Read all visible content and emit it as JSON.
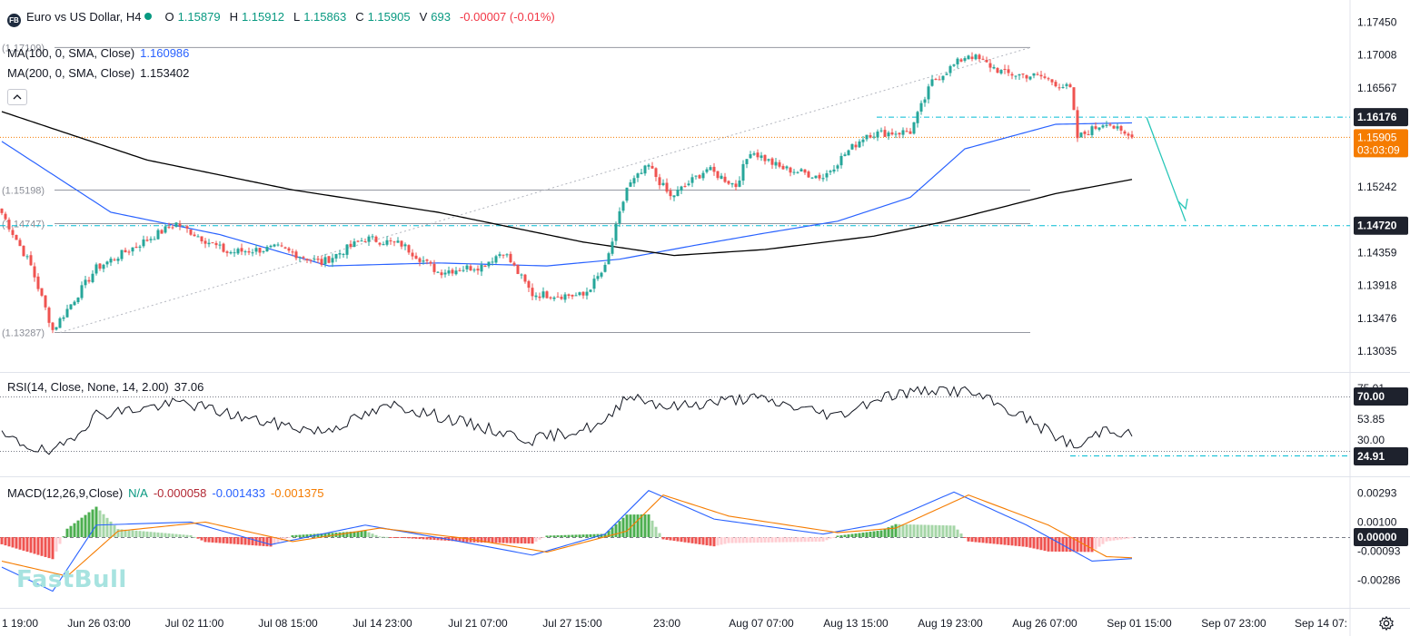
{
  "symbol": {
    "icon_text": "FB",
    "title": "Euro vs US Dollar, H4",
    "o_label": "O",
    "o": "1.15879",
    "h_label": "H",
    "h": "1.15912",
    "l_label": "L",
    "l": "1.15863",
    "c_label": "C",
    "c": "1.15905",
    "v_label": "V",
    "v": "693",
    "change": "-0.00007 (-0.01%)"
  },
  "indicators": {
    "ma100_label": "MA(100, 0, SMA, Close)",
    "ma100_value": "1.160986",
    "ma200_label": "MA(200, 0, SMA, Close)",
    "ma200_value": "1.153402",
    "rsi_label": "RSI(14, Close, None, 14, 2.00)",
    "rsi_value": "37.06",
    "macd_label": "MACD(12,26,9,Close)",
    "macd_na": "N/A",
    "macd_hist": "-0.000058",
    "macd_line": "-0.001433",
    "macd_signal": "-0.001375"
  },
  "watermark": "FastBull",
  "colors": {
    "up": "#26a69a",
    "down": "#ef5350",
    "ma100": "#2962ff",
    "ma200": "#000000",
    "drawing": "#00bcd4",
    "macd_line": "#2962ff",
    "macd_signal": "#f57c00"
  },
  "chart_data": [
    {
      "type": "candlestick",
      "title": "Euro vs US Dollar, H4",
      "ylim": [
        1.128,
        1.1768
      ],
      "y_ticks": [
        "1.17450",
        "1.17008",
        "1.16567",
        "1.15242",
        "1.14359",
        "1.13918",
        "1.13476",
        "1.13035"
      ],
      "x_ticks": [
        "1 19:00",
        "Jun 26 03:00",
        "Jul 02 11:00",
        "Jul 08 15:00",
        "Jul 14 23:00",
        "Jul 21 07:00",
        "Jul 27 15:00",
        "23:00",
        "Aug 07 07:00",
        "Aug 13 15:00",
        "Aug 19 23:00",
        "Aug 26 07:00",
        "Sep 01 15:00",
        "Sep 07 23:00",
        "Sep 14 07:"
      ],
      "price_labels": {
        "resistance": "1.16176",
        "current": "1.15905",
        "countdown": "03:03:09",
        "support": "1.14720"
      },
      "fib_levels": [
        "(1.17109)",
        "(1.15198)",
        "(1.14747)",
        "(1.13287)"
      ],
      "anchors": [
        {
          "x": 0,
          "y": 1.1489
        },
        {
          "x": 8,
          "y": 1.1418
        },
        {
          "x": 14,
          "y": 1.1332
        },
        {
          "x": 26,
          "y": 1.1415
        },
        {
          "x": 48,
          "y": 1.1475
        },
        {
          "x": 62,
          "y": 1.1436
        },
        {
          "x": 76,
          "y": 1.1442
        },
        {
          "x": 88,
          "y": 1.1422
        },
        {
          "x": 100,
          "y": 1.1455
        },
        {
          "x": 110,
          "y": 1.1447
        },
        {
          "x": 120,
          "y": 1.141
        },
        {
          "x": 132,
          "y": 1.1418
        },
        {
          "x": 138,
          "y": 1.1438
        },
        {
          "x": 146,
          "y": 1.138
        },
        {
          "x": 160,
          "y": 1.1378
        },
        {
          "x": 166,
          "y": 1.1415
        },
        {
          "x": 172,
          "y": 1.1523
        },
        {
          "x": 178,
          "y": 1.1552
        },
        {
          "x": 184,
          "y": 1.151
        },
        {
          "x": 194,
          "y": 1.1548
        },
        {
          "x": 202,
          "y": 1.1526
        },
        {
          "x": 206,
          "y": 1.1573
        },
        {
          "x": 214,
          "y": 1.155
        },
        {
          "x": 226,
          "y": 1.1537
        },
        {
          "x": 232,
          "y": 1.1568
        },
        {
          "x": 238,
          "y": 1.1595
        },
        {
          "x": 250,
          "y": 1.1598
        },
        {
          "x": 256,
          "y": 1.1665
        },
        {
          "x": 266,
          "y": 1.1702
        },
        {
          "x": 276,
          "y": 1.1676
        },
        {
          "x": 286,
          "y": 1.1672
        },
        {
          "x": 294,
          "y": 1.1655
        },
        {
          "x": 296,
          "y": 1.159
        },
        {
          "x": 304,
          "y": 1.1612
        },
        {
          "x": 308,
          "y": 1.1596
        },
        {
          "x": 311,
          "y": 1.15905
        }
      ],
      "ma100": [
        {
          "x": 0,
          "y": 1.1585
        },
        {
          "x": 30,
          "y": 1.149
        },
        {
          "x": 60,
          "y": 1.146
        },
        {
          "x": 90,
          "y": 1.1418
        },
        {
          "x": 120,
          "y": 1.1422
        },
        {
          "x": 150,
          "y": 1.1418
        },
        {
          "x": 170,
          "y": 1.1427
        },
        {
          "x": 190,
          "y": 1.1445
        },
        {
          "x": 210,
          "y": 1.1462
        },
        {
          "x": 230,
          "y": 1.1478
        },
        {
          "x": 250,
          "y": 1.151
        },
        {
          "x": 265,
          "y": 1.1575
        },
        {
          "x": 290,
          "y": 1.1608
        },
        {
          "x": 311,
          "y": 1.16099
        }
      ],
      "ma200": [
        {
          "x": 0,
          "y": 1.1625
        },
        {
          "x": 40,
          "y": 1.156
        },
        {
          "x": 80,
          "y": 1.152
        },
        {
          "x": 120,
          "y": 1.149
        },
        {
          "x": 160,
          "y": 1.145
        },
        {
          "x": 185,
          "y": 1.1432
        },
        {
          "x": 210,
          "y": 1.144
        },
        {
          "x": 240,
          "y": 1.1458
        },
        {
          "x": 260,
          "y": 1.1478
        },
        {
          "x": 290,
          "y": 1.1515
        },
        {
          "x": 311,
          "y": 1.1534
        }
      ]
    },
    {
      "type": "line",
      "title": "RSI(14, Close, None, 14, 2.00)",
      "ylim": [
        20,
        80
      ],
      "y_ticks": [
        "75.01",
        "53.85",
        "30.00"
      ],
      "price_labels": {
        "upper": "70.00",
        "lower": "24.91"
      },
      "anchors": [
        {
          "x": 0,
          "y": 37
        },
        {
          "x": 14,
          "y": 22
        },
        {
          "x": 26,
          "y": 55
        },
        {
          "x": 50,
          "y": 65
        },
        {
          "x": 70,
          "y": 50
        },
        {
          "x": 88,
          "y": 41
        },
        {
          "x": 108,
          "y": 63
        },
        {
          "x": 130,
          "y": 46
        },
        {
          "x": 146,
          "y": 34
        },
        {
          "x": 166,
          "y": 47
        },
        {
          "x": 172,
          "y": 72
        },
        {
          "x": 184,
          "y": 61
        },
        {
          "x": 206,
          "y": 69
        },
        {
          "x": 230,
          "y": 54
        },
        {
          "x": 242,
          "y": 70
        },
        {
          "x": 256,
          "y": 76
        },
        {
          "x": 266,
          "y": 74
        },
        {
          "x": 280,
          "y": 55
        },
        {
          "x": 296,
          "y": 27
        },
        {
          "x": 304,
          "y": 45
        },
        {
          "x": 311,
          "y": 37.06
        }
      ]
    },
    {
      "type": "bar",
      "title": "MACD(12,26,9,Close)",
      "ylim": [
        -0.0042,
        0.0035
      ],
      "y_ticks": [
        "0.00293",
        "0.00100",
        "0.00000",
        "-0.00093",
        "-0.00286"
      ],
      "price_labels": {
        "zero": "0.00000"
      },
      "macd_line": [
        {
          "x": 0,
          "y": -0.002
        },
        {
          "x": 14,
          "y": -0.0036
        },
        {
          "x": 26,
          "y": 0.0008
        },
        {
          "x": 52,
          "y": 0.001
        },
        {
          "x": 74,
          "y": -0.0005
        },
        {
          "x": 100,
          "y": 0.0008
        },
        {
          "x": 124,
          "y": -0.0002
        },
        {
          "x": 146,
          "y": -0.0012
        },
        {
          "x": 166,
          "y": 0.0002
        },
        {
          "x": 178,
          "y": 0.0031
        },
        {
          "x": 196,
          "y": 0.0012
        },
        {
          "x": 226,
          "y": 0.0002
        },
        {
          "x": 242,
          "y": 0.0009
        },
        {
          "x": 262,
          "y": 0.003
        },
        {
          "x": 282,
          "y": 0.0008
        },
        {
          "x": 300,
          "y": -0.0016
        },
        {
          "x": 311,
          "y": -0.001433
        }
      ],
      "signal_line": [
        {
          "x": 0,
          "y": -0.0016
        },
        {
          "x": 18,
          "y": -0.0026
        },
        {
          "x": 32,
          "y": 0.0004
        },
        {
          "x": 56,
          "y": 0.001
        },
        {
          "x": 80,
          "y": -0.0003
        },
        {
          "x": 104,
          "y": 0.0006
        },
        {
          "x": 128,
          "y": -0.0001
        },
        {
          "x": 150,
          "y": -0.001
        },
        {
          "x": 172,
          "y": 0.0004
        },
        {
          "x": 182,
          "y": 0.0028
        },
        {
          "x": 200,
          "y": 0.0014
        },
        {
          "x": 230,
          "y": 0.0003
        },
        {
          "x": 246,
          "y": 0.0006
        },
        {
          "x": 266,
          "y": 0.0028
        },
        {
          "x": 288,
          "y": 0.0008
        },
        {
          "x": 304,
          "y": -0.0013
        },
        {
          "x": 311,
          "y": -0.001375
        }
      ]
    }
  ]
}
